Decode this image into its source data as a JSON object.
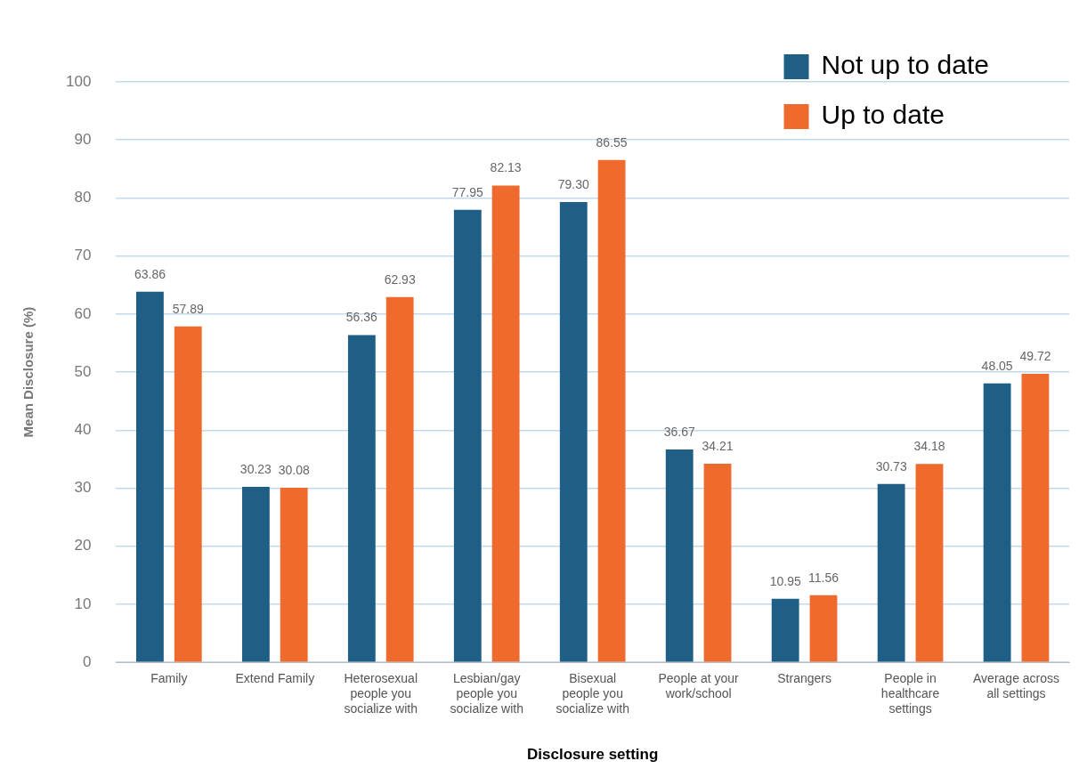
{
  "chart_data": {
    "type": "bar",
    "xlabel": "Disclosure setting",
    "ylabel": "Mean Disclosure (%)",
    "categories": [
      "Family",
      "Extend Family",
      "Heterosexual people you socialize with",
      "Lesbian/gay people you socialize with",
      "Bisexual people you socialize with",
      "People at your work/school",
      "Strangers",
      "People in healthcare settings",
      "Average across all settings"
    ],
    "series": [
      {
        "name": "Not up to date",
        "color": "#1f5f85",
        "values": [
          63.86,
          30.23,
          56.36,
          77.95,
          79.3,
          36.67,
          10.95,
          30.73,
          48.05
        ],
        "value_labels": [
          "63.86",
          "30.23",
          "56.36",
          "77.95",
          "79.30",
          "36.67",
          "10.95",
          "30.73",
          "48.05"
        ]
      },
      {
        "name": "Up to date",
        "color": "#ee6b2d",
        "values": [
          57.89,
          30.08,
          62.93,
          82.13,
          86.55,
          34.21,
          11.56,
          34.18,
          49.72
        ],
        "value_labels": [
          "57.89",
          "30.08",
          "62.93",
          "82.13",
          "86.55",
          "34.21",
          "11.56",
          "34.18",
          "49.72"
        ]
      }
    ],
    "ylim": [
      0,
      100
    ],
    "yticks": [
      0,
      10,
      20,
      30,
      40,
      50,
      60,
      70,
      80,
      90,
      100
    ],
    "grid": "y",
    "legend": "top right"
  }
}
